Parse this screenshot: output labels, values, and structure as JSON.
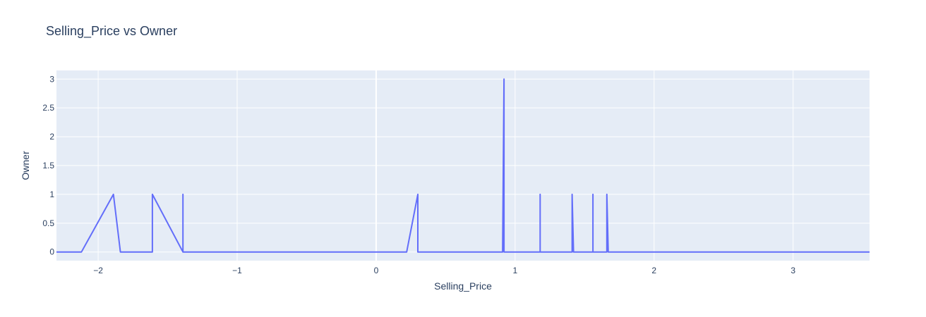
{
  "chart_data": {
    "type": "line",
    "title": "Selling_Price vs Owner",
    "xlabel": "Selling_Price",
    "ylabel": "Owner",
    "xlim": [
      -2.3,
      3.55
    ],
    "ylim": [
      -0.15,
      3.15
    ],
    "x_ticks": [
      -2,
      -1,
      0,
      1,
      2,
      3
    ],
    "x_tick_labels": [
      "−2",
      "−1",
      "0",
      "1",
      "2",
      "3"
    ],
    "y_ticks": [
      0,
      0.5,
      1,
      1.5,
      2,
      2.5,
      3
    ],
    "y_tick_labels": [
      "0",
      "0.5",
      "1",
      "1.5",
      "2",
      "2.5",
      "3"
    ],
    "grid": true,
    "colors": {
      "line": "#636efa",
      "plot_bg": "#e5ecf6",
      "grid": "#ffffff",
      "text": "#2a3f5f"
    },
    "series": [
      {
        "x": [
          -2.3,
          -2.12,
          -1.89,
          -1.84,
          -1.61,
          -1.61,
          -1.39,
          -1.39,
          -1.39,
          0.22,
          0.3,
          0.3,
          0.91,
          0.92,
          0.92,
          0.93,
          1.18,
          1.18,
          1.18,
          1.41,
          1.41,
          1.42,
          1.56,
          1.56,
          1.56,
          1.66,
          1.66,
          1.67,
          3.55
        ],
        "y": [
          0,
          0,
          1,
          0,
          0,
          1,
          0,
          1,
          0,
          0,
          1,
          0,
          0,
          3,
          0,
          0,
          0,
          1,
          0,
          0,
          1,
          0,
          0,
          1,
          0,
          0,
          1,
          0,
          0
        ]
      }
    ]
  }
}
